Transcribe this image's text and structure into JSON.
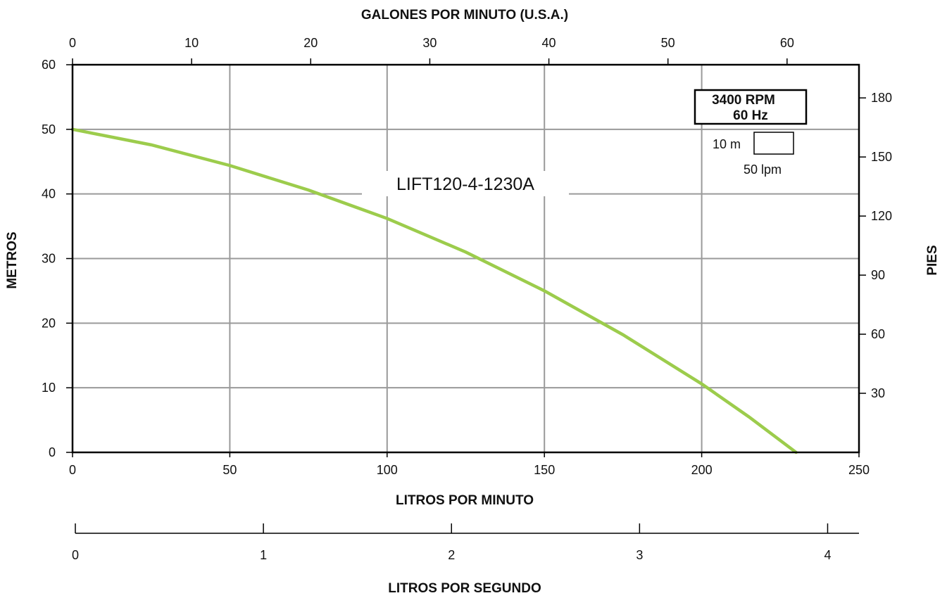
{
  "colors": {
    "curve": "#9ccc4c",
    "grid": "#9a9a9a",
    "frame": "#000000"
  },
  "chart_data": {
    "type": "line",
    "xlabel": "LITROS POR MINUTO",
    "ylabel": "METROS",
    "x2label": "GALONES POR MINUTO (U.S.A.)",
    "y2label": "PIES",
    "x3label": "LITROS POR SEGUNDO",
    "xlim": [
      0,
      250
    ],
    "ylim": [
      0,
      60
    ],
    "x2lim": [
      0,
      66.04
    ],
    "y2lim": [
      0,
      196.85
    ],
    "x3lim": [
      0,
      4.1667
    ],
    "xticks": [
      0,
      50,
      100,
      150,
      200,
      250
    ],
    "yticks": [
      0,
      10,
      20,
      30,
      40,
      50,
      60
    ],
    "x2ticks": [
      0,
      10,
      20,
      30,
      40,
      50,
      60
    ],
    "y2ticks": [
      30,
      60,
      90,
      120,
      150,
      180
    ],
    "x3ticks": [
      0,
      1,
      2,
      3,
      4
    ],
    "grid": true,
    "series": [
      {
        "name": "LIFT120-4-1230A",
        "x": [
          0,
          25,
          50,
          75,
          100,
          125,
          150,
          175,
          200,
          215,
          230
        ],
        "y": [
          50,
          47.6,
          44.4,
          40.6,
          36.2,
          31.0,
          25.0,
          18.2,
          10.6,
          5.5,
          0
        ]
      }
    ],
    "annotations": {
      "rpm_line1": "3400 RPM",
      "rpm_line2": "60 Hz",
      "scale_vertical": "10 m",
      "scale_horizontal": "50 lpm"
    }
  }
}
